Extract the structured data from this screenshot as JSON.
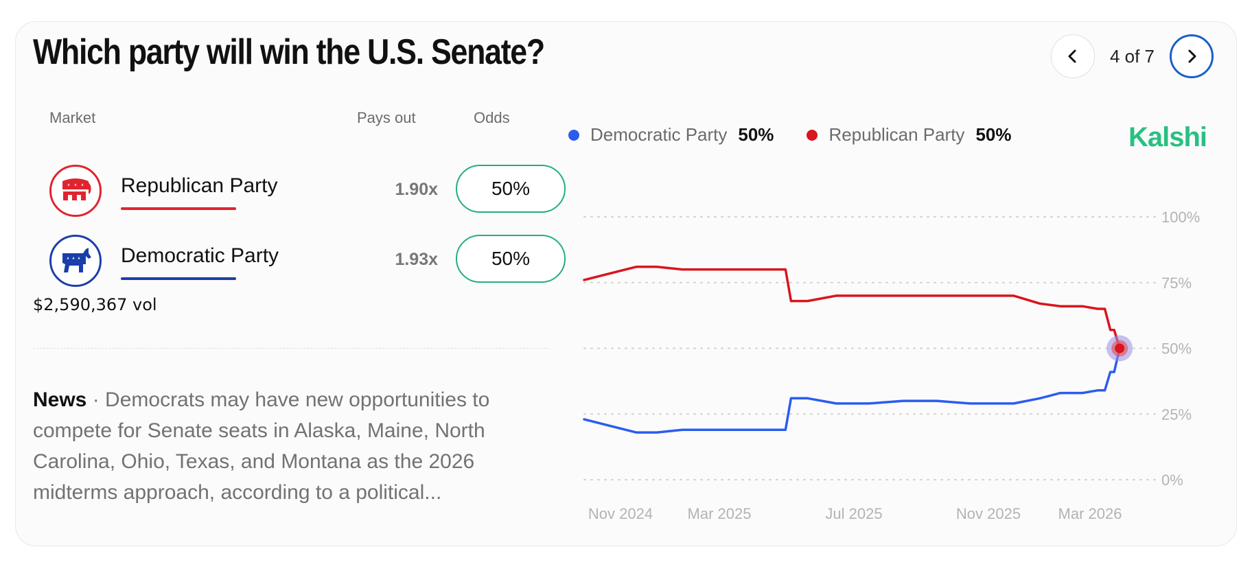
{
  "title": "Which party will win the U.S. Senate?",
  "nav": {
    "position_label": "4 of 7"
  },
  "table": {
    "col_market": "Market",
    "col_payout": "Pays out",
    "col_odds": "Odds"
  },
  "markets": [
    {
      "name": "Republican Party",
      "payout": "1.90x",
      "odds": "50%",
      "color": "#e0242f",
      "icon": "elephant-icon"
    },
    {
      "name": "Democratic Party",
      "payout": "1.93x",
      "odds": "50%",
      "color": "#1a3faa",
      "icon": "donkey-icon"
    }
  ],
  "volume": "$2,590,367 vol",
  "news": {
    "label": "News",
    "separator": " · ",
    "text": "Democrats may have new opportunities to compete for Senate seats in Alaska, Maine, North Carolina, Ohio, Texas, and Montana as the 2026 midterms approach, according to a political..."
  },
  "legend": [
    {
      "name": "Democratic Party",
      "value": "50%",
      "color": "#2b5cf0"
    },
    {
      "name": "Republican Party",
      "value": "50%",
      "color": "#d9151d"
    }
  ],
  "brand": "Kalshi",
  "chart_data": {
    "type": "line",
    "x_ticks": [
      "Nov 2024",
      "Mar 2025",
      "Jul 2025",
      "Nov 2025",
      "Mar 2026"
    ],
    "y_ticks": [
      "100%",
      "75%",
      "50%",
      "25%",
      "0%"
    ],
    "ylim": [
      0,
      100
    ],
    "grid": true,
    "x": [
      "2024-11-01",
      "2024-11-20",
      "2024-12-15",
      "2025-01-15",
      "2025-02-15",
      "2025-03-15",
      "2025-04-20",
      "2025-05-05",
      "2025-05-20",
      "2025-06-15",
      "2025-07-15",
      "2025-08-15",
      "2025-09-15",
      "2025-10-15",
      "2025-11-05",
      "2025-12-01",
      "2026-01-01",
      "2026-01-25",
      "2026-02-20",
      "2026-03-10",
      "2026-03-25",
      "2026-04-05"
    ],
    "series": [
      {
        "name": "Democratic Party",
        "color": "#2b5cf0",
        "values": [
          23,
          18,
          18,
          19,
          19,
          19,
          19,
          31,
          31,
          29,
          29,
          30,
          30,
          29,
          29,
          29,
          31,
          33,
          33,
          34,
          41,
          50
        ]
      },
      {
        "name": "Republican Party",
        "color": "#d9151d",
        "values": [
          76,
          81,
          81,
          80,
          80,
          80,
          80,
          68,
          68,
          70,
          70,
          70,
          70,
          70,
          70,
          70,
          67,
          66,
          66,
          65,
          57,
          50
        ]
      }
    ]
  }
}
